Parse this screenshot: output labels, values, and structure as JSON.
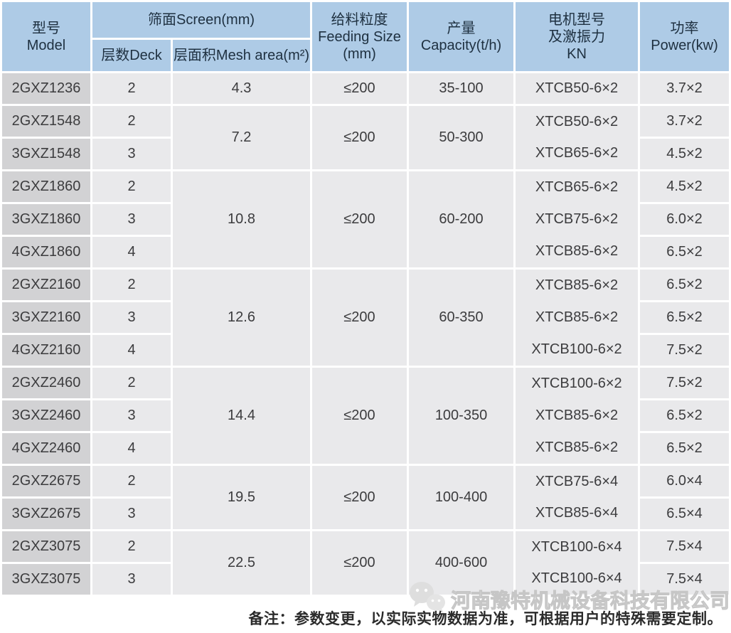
{
  "table": {
    "header": {
      "model": [
        "型号",
        "Model"
      ],
      "screen": "筛面Screen(mm)",
      "deck": "层数Deck",
      "mesh": "层面积Mesh area(m²)",
      "feeding": [
        "给料粒度",
        "Feeding Size",
        "(mm)"
      ],
      "capacity": [
        "产量",
        "Capacity(t/h)"
      ],
      "motor": [
        "电机型号",
        "及激振力",
        "KN"
      ],
      "power": [
        "功率",
        "Power(kw)"
      ]
    },
    "groups": [
      {
        "mesh": "4.3",
        "feeding": "≤200",
        "capacity": "35-100",
        "rows": [
          {
            "model": "2GXZ1236",
            "deck": "2",
            "motor": "XTCB50-6×2",
            "power": "3.7×2"
          }
        ]
      },
      {
        "mesh": "7.2",
        "feeding": "≤200",
        "capacity": "50-300",
        "rows": [
          {
            "model": "2GXZ1548",
            "deck": "2",
            "motor": "XTCB50-6×2",
            "power": "3.7×2"
          },
          {
            "model": "3GXZ1548",
            "deck": "3",
            "motor": "XTCB65-6×2",
            "power": "4.5×2"
          }
        ]
      },
      {
        "mesh": "10.8",
        "feeding": "≤200",
        "capacity": "60-200",
        "rows": [
          {
            "model": "2GXZ1860",
            "deck": "2",
            "motor": "XTCB65-6×2",
            "power": "4.5×2"
          },
          {
            "model": "3GXZ1860",
            "deck": "3",
            "motor": "XTCB75-6×2",
            "power": "6.0×2"
          },
          {
            "model": "4GXZ1860",
            "deck": "4",
            "motor": "XTCB85-6×2",
            "power": "6.5×2"
          }
        ]
      },
      {
        "mesh": "12.6",
        "feeding": "≤200",
        "capacity": "60-350",
        "rows": [
          {
            "model": "2GXZ2160",
            "deck": "2",
            "motor": "XTCB85-6×2",
            "power": "6.5×2"
          },
          {
            "model": "3GXZ2160",
            "deck": "3",
            "motor": "XTCB85-6×2",
            "power": "6.5×2"
          },
          {
            "model": "4GXZ2160",
            "deck": "4",
            "motor": "XTCB100-6×2",
            "power": "7.5×2"
          }
        ]
      },
      {
        "mesh": "14.4",
        "feeding": "≤200",
        "capacity": "100-350",
        "rows": [
          {
            "model": "2GXZ2460",
            "deck": "2",
            "motor": "XTCB100-6×2",
            "power": "7.5×2"
          },
          {
            "model": "3GXZ2460",
            "deck": "3",
            "motor": "XTCB85-6×2",
            "power": "6.5×2"
          },
          {
            "model": "4GXZ2460",
            "deck": "4",
            "motor": "XTCB85-6×2",
            "power": "6.5×2"
          }
        ]
      },
      {
        "mesh": "19.5",
        "feeding": "≤200",
        "capacity": "100-400",
        "rows": [
          {
            "model": "2GXZ2675",
            "deck": "2",
            "motor": "XTCB75-6×4",
            "power": "6.0×4"
          },
          {
            "model": "3GXZ2675",
            "deck": "3",
            "motor": "XTCB85-6×4",
            "power": "6.5×4"
          }
        ]
      },
      {
        "mesh": "22.5",
        "feeding": "≤200",
        "capacity": "400-600",
        "rows": [
          {
            "model": "2GXZ3075",
            "deck": "2",
            "motor": "XTCB100-6×4",
            "power": "7.5×4"
          },
          {
            "model": "3GXZ3075",
            "deck": "3",
            "motor": "XTCB100-6×4",
            "power": "7.5×4"
          }
        ]
      }
    ]
  },
  "footer": {
    "note": "备注：参数变更，以实际实物数据为准，可根据用户的特殊需要定制。",
    "watermark": "河南豫特机械设备科技有限公司"
  },
  "colors": {
    "header_bg": "#aecbe6",
    "header_text": "#1e3040",
    "model_cell_bg": "#d2d2d4",
    "data_cell_bg": "#e9e9eb",
    "cell_text": "#3c3c3e",
    "note_text": "#2b2b2b",
    "watermark": "#cccccc",
    "grid_gap": "#ffffff"
  }
}
